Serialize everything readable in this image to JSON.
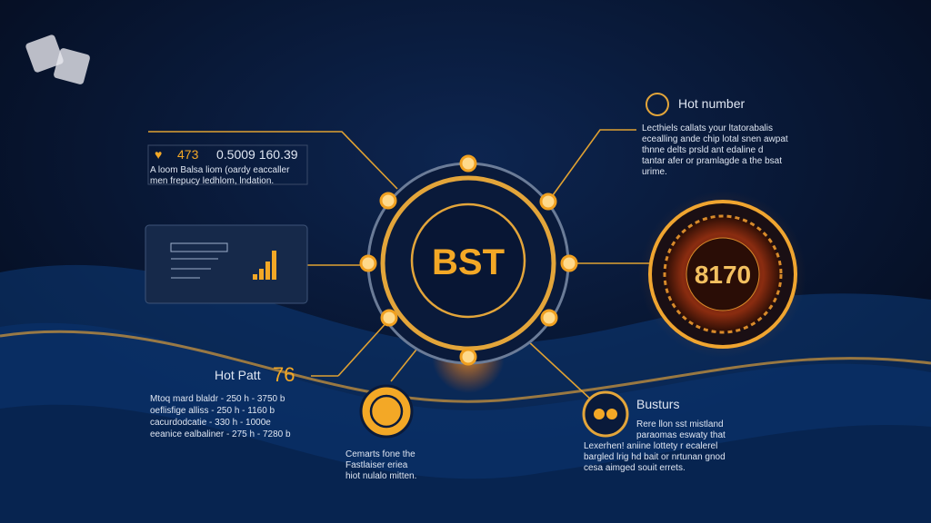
{
  "top_stat": {
    "number": "473",
    "value": "0.5009 160.39",
    "lines": [
      "A loom Balsa liom (oardy eaccaller",
      "men frepucy ledhlom, lndation."
    ]
  },
  "hot_number": {
    "title": "Hot number",
    "lines": [
      "Lecthiels callats your ltatorabalis",
      "ecealling ande chip lotal snen awpat",
      "thnne delts prsld ant edaline d",
      "tantar afer or pramlagde a the bsat",
      "urime."
    ]
  },
  "center": {
    "label": "BST"
  },
  "roulette": {
    "label": "8170"
  },
  "hot_patt": {
    "title": "Hot Patt",
    "number": "76",
    "rows": [
      "Mtoq mard blaldr - 250 h - 3750 b",
      "oeflisfige alliss - 250 h - 1160 b",
      "cacurdodcatie - 330 h - 1000e",
      "eeanice ealbaliner - 275 h - 7280 b"
    ]
  },
  "gauge": {
    "lines": [
      "Cemarts fone the",
      "Fastlaiser eriea",
      "hiot nulalo mitten."
    ]
  },
  "busturs": {
    "title": "Busturs",
    "lines": [
      "Rere llon sst mistland",
      "paraomas eswaty that",
      "Lexerhen! aniine lottety r ecalerel",
      "bargled lrig hd bait or nrtunan gnod",
      "cesa aimged souit errets."
    ]
  }
}
